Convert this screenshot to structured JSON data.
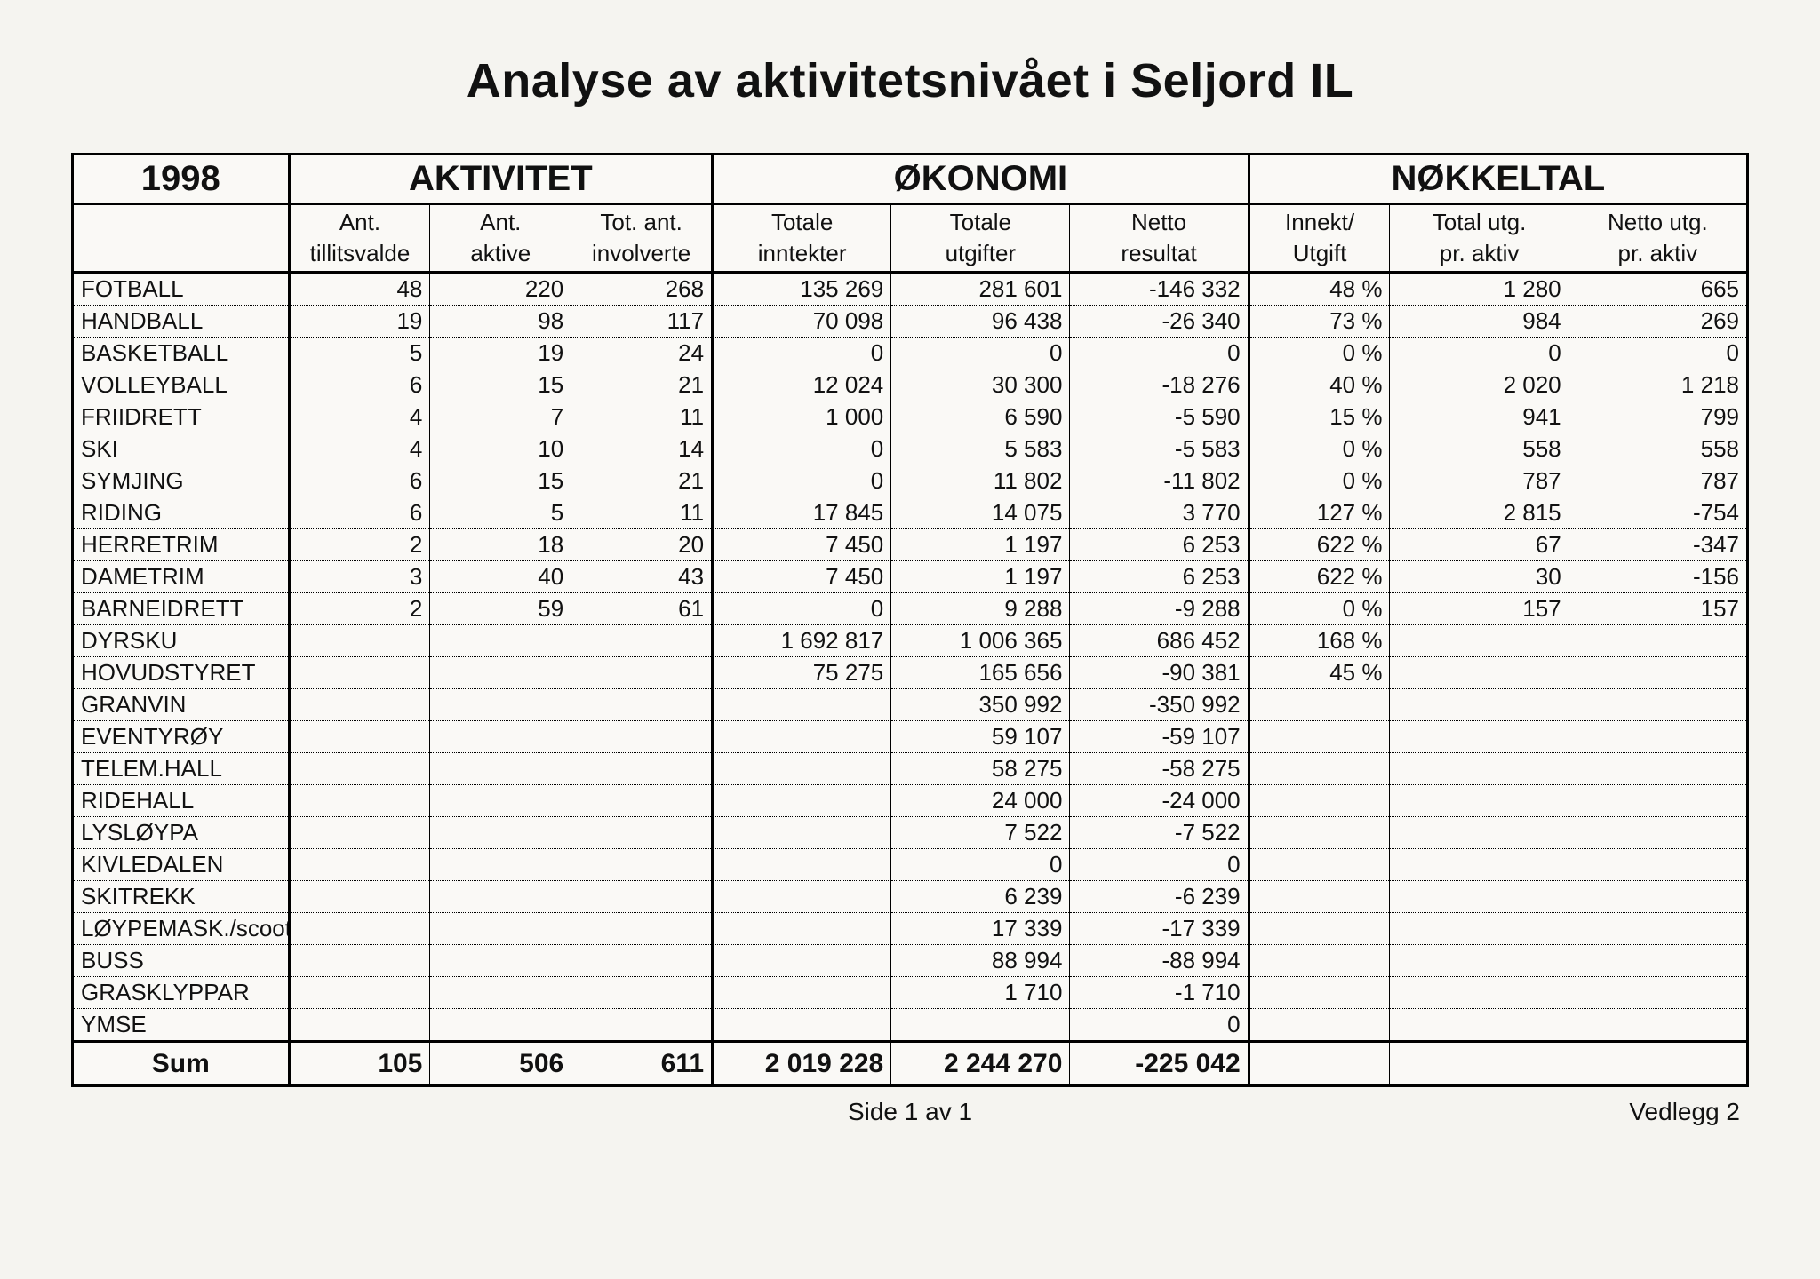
{
  "title": "Analyse av aktivitetsnivået i Seljord IL",
  "year": "1998",
  "groups": {
    "g1": "AKTIVITET",
    "g2": "ØKONOMI",
    "g3": "NØKKELTAL"
  },
  "sub1": {
    "c1": "Ant.",
    "c2": "Ant.",
    "c3": "Tot. ant.",
    "c4": "Totale",
    "c5": "Totale",
    "c6": "Netto",
    "c7": "Innekt/",
    "c8": "Total utg.",
    "c9": "Netto utg."
  },
  "sub2": {
    "c1": "tillitsvalde",
    "c2": "aktive",
    "c3": "involverte",
    "c4": "inntekter",
    "c5": "utgifter",
    "c6": "resultat",
    "c7": "Utgift",
    "c8": "pr. aktiv",
    "c9": "pr. aktiv"
  },
  "rows": [
    {
      "label": "FOTBALL",
      "c1": "48",
      "c2": "220",
      "c3": "268",
      "c4": "135 269",
      "c5": "281 601",
      "c6": "-146 332",
      "c7": "48 %",
      "c8": "1 280",
      "c9": "665"
    },
    {
      "label": "HANDBALL",
      "c1": "19",
      "c2": "98",
      "c3": "117",
      "c4": "70 098",
      "c5": "96 438",
      "c6": "-26 340",
      "c7": "73 %",
      "c8": "984",
      "c9": "269"
    },
    {
      "label": "BASKETBALL",
      "c1": "5",
      "c2": "19",
      "c3": "24",
      "c4": "0",
      "c5": "0",
      "c6": "0",
      "c7": "0 %",
      "c8": "0",
      "c9": "0"
    },
    {
      "label": "VOLLEYBALL",
      "c1": "6",
      "c2": "15",
      "c3": "21",
      "c4": "12 024",
      "c5": "30 300",
      "c6": "-18 276",
      "c7": "40 %",
      "c8": "2 020",
      "c9": "1 218"
    },
    {
      "label": "FRIIDRETT",
      "c1": "4",
      "c2": "7",
      "c3": "11",
      "c4": "1 000",
      "c5": "6 590",
      "c6": "-5 590",
      "c7": "15 %",
      "c8": "941",
      "c9": "799"
    },
    {
      "label": "SKI",
      "c1": "4",
      "c2": "10",
      "c3": "14",
      "c4": "0",
      "c5": "5 583",
      "c6": "-5 583",
      "c7": "0 %",
      "c8": "558",
      "c9": "558"
    },
    {
      "label": "SYMJING",
      "c1": "6",
      "c2": "15",
      "c3": "21",
      "c4": "0",
      "c5": "11 802",
      "c6": "-11 802",
      "c7": "0 %",
      "c8": "787",
      "c9": "787"
    },
    {
      "label": "RIDING",
      "c1": "6",
      "c2": "5",
      "c3": "11",
      "c4": "17 845",
      "c5": "14 075",
      "c6": "3 770",
      "c7": "127 %",
      "c8": "2 815",
      "c9": "-754"
    },
    {
      "label": "HERRETRIM",
      "c1": "2",
      "c2": "18",
      "c3": "20",
      "c4": "7 450",
      "c5": "1 197",
      "c6": "6 253",
      "c7": "622 %",
      "c8": "67",
      "c9": "-347"
    },
    {
      "label": "DAMETRIM",
      "c1": "3",
      "c2": "40",
      "c3": "43",
      "c4": "7 450",
      "c5": "1 197",
      "c6": "6 253",
      "c7": "622 %",
      "c8": "30",
      "c9": "-156"
    },
    {
      "label": "BARNEIDRETT",
      "c1": "2",
      "c2": "59",
      "c3": "61",
      "c4": "0",
      "c5": "9 288",
      "c6": "-9 288",
      "c7": "0 %",
      "c8": "157",
      "c9": "157"
    },
    {
      "label": "DYRSKU",
      "c1": "",
      "c2": "",
      "c3": "",
      "c4": "1 692 817",
      "c5": "1 006 365",
      "c6": "686 452",
      "c7": "168 %",
      "c8": "",
      "c9": ""
    },
    {
      "label": "HOVUDSTYRET",
      "c1": "",
      "c2": "",
      "c3": "",
      "c4": "75 275",
      "c5": "165 656",
      "c6": "-90 381",
      "c7": "45 %",
      "c8": "",
      "c9": ""
    },
    {
      "label": "GRANVIN",
      "c1": "",
      "c2": "",
      "c3": "",
      "c4": "",
      "c5": "350 992",
      "c6": "-350 992",
      "c7": "",
      "c8": "",
      "c9": ""
    },
    {
      "label": "EVENTYRØY",
      "c1": "",
      "c2": "",
      "c3": "",
      "c4": "",
      "c5": "59 107",
      "c6": "-59 107",
      "c7": "",
      "c8": "",
      "c9": ""
    },
    {
      "label": "TELEM.HALL",
      "c1": "",
      "c2": "",
      "c3": "",
      "c4": "",
      "c5": "58 275",
      "c6": "-58 275",
      "c7": "",
      "c8": "",
      "c9": ""
    },
    {
      "label": "RIDEHALL",
      "c1": "",
      "c2": "",
      "c3": "",
      "c4": "",
      "c5": "24 000",
      "c6": "-24 000",
      "c7": "",
      "c8": "",
      "c9": ""
    },
    {
      "label": "LYSLØYPA",
      "c1": "",
      "c2": "",
      "c3": "",
      "c4": "",
      "c5": "7 522",
      "c6": "-7 522",
      "c7": "",
      "c8": "",
      "c9": ""
    },
    {
      "label": "KIVLEDALEN",
      "c1": "",
      "c2": "",
      "c3": "",
      "c4": "",
      "c5": "0",
      "c6": "0",
      "c7": "",
      "c8": "",
      "c9": ""
    },
    {
      "label": "SKITREKK",
      "c1": "",
      "c2": "",
      "c3": "",
      "c4": "",
      "c5": "6 239",
      "c6": "-6 239",
      "c7": "",
      "c8": "",
      "c9": ""
    },
    {
      "label": "LØYPEMASK./scooter",
      "c1": "",
      "c2": "",
      "c3": "",
      "c4": "",
      "c5": "17 339",
      "c6": "-17 339",
      "c7": "",
      "c8": "",
      "c9": ""
    },
    {
      "label": "BUSS",
      "c1": "",
      "c2": "",
      "c3": "",
      "c4": "",
      "c5": "88 994",
      "c6": "-88 994",
      "c7": "",
      "c8": "",
      "c9": ""
    },
    {
      "label": "GRASKLYPPAR",
      "c1": "",
      "c2": "",
      "c3": "",
      "c4": "",
      "c5": "1 710",
      "c6": "-1 710",
      "c7": "",
      "c8": "",
      "c9": ""
    },
    {
      "label": "YMSE",
      "c1": "",
      "c2": "",
      "c3": "",
      "c4": "",
      "c5": "",
      "c6": "0",
      "c7": "",
      "c8": "",
      "c9": ""
    }
  ],
  "sum": {
    "label": "Sum",
    "c1": "105",
    "c2": "506",
    "c3": "611",
    "c4": "2 019 228",
    "c5": "2 244 270",
    "c6": "-225 042",
    "c7": "",
    "c8": "",
    "c9": ""
  },
  "footer": {
    "page": "Side 1 av 1",
    "attachment": "Vedlegg 2"
  },
  "style": {
    "bg": "#f5f4f0",
    "table_bg": "#faf9f6",
    "border": "#000000",
    "title_fontsize": 54,
    "header_fontsize": 40,
    "body_fontsize": 26,
    "font_family": "Arial"
  }
}
